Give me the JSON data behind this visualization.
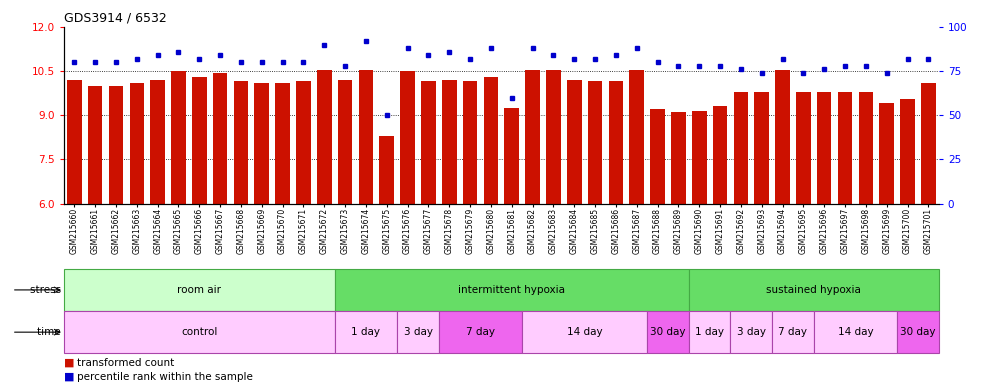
{
  "title": "GDS3914 / 6532",
  "samples": [
    "GSM215660",
    "GSM215661",
    "GSM215662",
    "GSM215663",
    "GSM215664",
    "GSM215665",
    "GSM215666",
    "GSM215667",
    "GSM215668",
    "GSM215669",
    "GSM215670",
    "GSM215671",
    "GSM215672",
    "GSM215673",
    "GSM215674",
    "GSM215675",
    "GSM215676",
    "GSM215677",
    "GSM215678",
    "GSM215679",
    "GSM215680",
    "GSM215681",
    "GSM215682",
    "GSM215683",
    "GSM215684",
    "GSM215685",
    "GSM215686",
    "GSM215687",
    "GSM215688",
    "GSM215689",
    "GSM215690",
    "GSM215691",
    "GSM215692",
    "GSM215693",
    "GSM215694",
    "GSM215695",
    "GSM215696",
    "GSM215697",
    "GSM215698",
    "GSM215699",
    "GSM215700",
    "GSM215701"
  ],
  "bar_values": [
    10.2,
    10.0,
    10.0,
    10.1,
    10.2,
    10.5,
    10.3,
    10.45,
    10.15,
    10.1,
    10.1,
    10.15,
    10.55,
    10.2,
    10.55,
    8.3,
    10.5,
    10.15,
    10.2,
    10.15,
    10.3,
    9.25,
    10.55,
    10.55,
    10.2,
    10.15,
    10.15,
    10.55,
    9.2,
    9.1,
    9.15,
    9.3,
    9.8,
    9.8,
    10.55,
    9.8,
    9.8,
    9.8,
    9.8,
    9.4,
    9.55,
    10.1
  ],
  "percentile_values": [
    80,
    80,
    80,
    82,
    84,
    86,
    82,
    84,
    80,
    80,
    80,
    80,
    90,
    78,
    92,
    50,
    88,
    84,
    86,
    82,
    88,
    60,
    88,
    84,
    82,
    82,
    84,
    88,
    80,
    78,
    78,
    78,
    76,
    74,
    82,
    74,
    76,
    78,
    78,
    74,
    82,
    82
  ],
  "ylim_left": [
    6,
    12
  ],
  "ylim_right": [
    0,
    100
  ],
  "yticks_left": [
    6,
    7.5,
    9,
    10.5,
    12
  ],
  "yticks_right": [
    0,
    25,
    50,
    75,
    100
  ],
  "bar_color": "#cc1100",
  "dot_color": "#0000cc",
  "stress_groups": [
    {
      "label": "room air",
      "start": 0,
      "end": 13,
      "color": "#ccffcc"
    },
    {
      "label": "intermittent hypoxia",
      "start": 13,
      "end": 30,
      "color": "#66dd66"
    },
    {
      "label": "sustained hypoxia",
      "start": 30,
      "end": 42,
      "color": "#66dd66"
    }
  ],
  "time_groups": [
    {
      "label": "control",
      "start": 0,
      "end": 13,
      "color": "#ffccff"
    },
    {
      "label": "1 day",
      "start": 13,
      "end": 16,
      "color": "#ffccff"
    },
    {
      "label": "3 day",
      "start": 16,
      "end": 18,
      "color": "#ffccff"
    },
    {
      "label": "7 day",
      "start": 18,
      "end": 22,
      "color": "#ee66ee"
    },
    {
      "label": "14 day",
      "start": 22,
      "end": 28,
      "color": "#ffccff"
    },
    {
      "label": "30 day",
      "start": 28,
      "end": 30,
      "color": "#ee66ee"
    },
    {
      "label": "1 day",
      "start": 30,
      "end": 32,
      "color": "#ffccff"
    },
    {
      "label": "3 day",
      "start": 32,
      "end": 34,
      "color": "#ffccff"
    },
    {
      "label": "7 day",
      "start": 34,
      "end": 36,
      "color": "#ffccff"
    },
    {
      "label": "14 day",
      "start": 36,
      "end": 40,
      "color": "#ffccff"
    },
    {
      "label": "30 day",
      "start": 40,
      "end": 42,
      "color": "#ee66ee"
    }
  ]
}
